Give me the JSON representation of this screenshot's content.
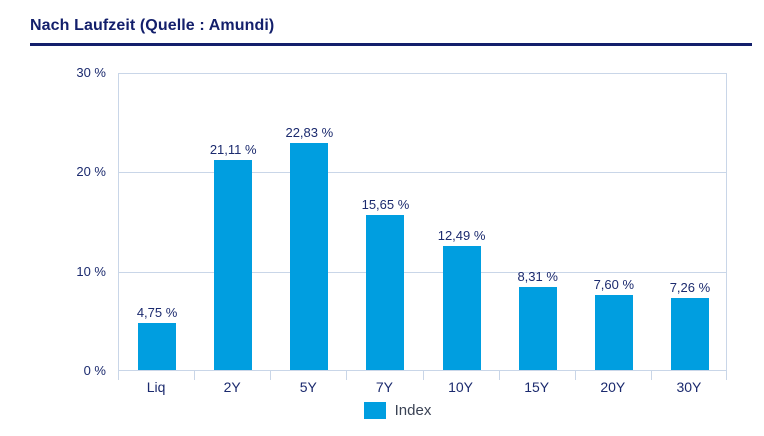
{
  "page": {
    "title": "Nach Laufzeit (Quelle : Amundi)"
  },
  "chart_data": {
    "type": "bar",
    "title": "Nach Laufzeit (Quelle : Amundi)",
    "categories": [
      "Liq",
      "2Y",
      "5Y",
      "7Y",
      "10Y",
      "15Y",
      "20Y",
      "30Y"
    ],
    "series": [
      {
        "name": "Index",
        "values": [
          4.75,
          21.11,
          22.83,
          15.65,
          12.49,
          8.31,
          7.6,
          7.26
        ]
      }
    ],
    "value_labels": [
      "4,75 %",
      "21,11 %",
      "22,83 %",
      "15,65 %",
      "12,49 %",
      "8,31 %",
      "7,60 %",
      "7,26 %"
    ],
    "xlabel": "",
    "ylabel": "",
    "ylim": [
      0,
      30
    ],
    "yticks": [
      {
        "value": 30,
        "label": "30 %"
      },
      {
        "value": 20,
        "label": "20 %"
      },
      {
        "value": 10,
        "label": "10 %"
      },
      {
        "value": 0,
        "label": "0 %"
      }
    ],
    "grid": true,
    "legend": {
      "position": "bottom",
      "entries": [
        {
          "label": "Index",
          "color": "#009ee0"
        }
      ]
    }
  },
  "colors": {
    "title_navy": "#131f6b",
    "label_navy": "#1b2a6e",
    "bar_blue": "#009ee0",
    "grid_line": "#c9d6e8",
    "legend_text": "#3a4254"
  }
}
